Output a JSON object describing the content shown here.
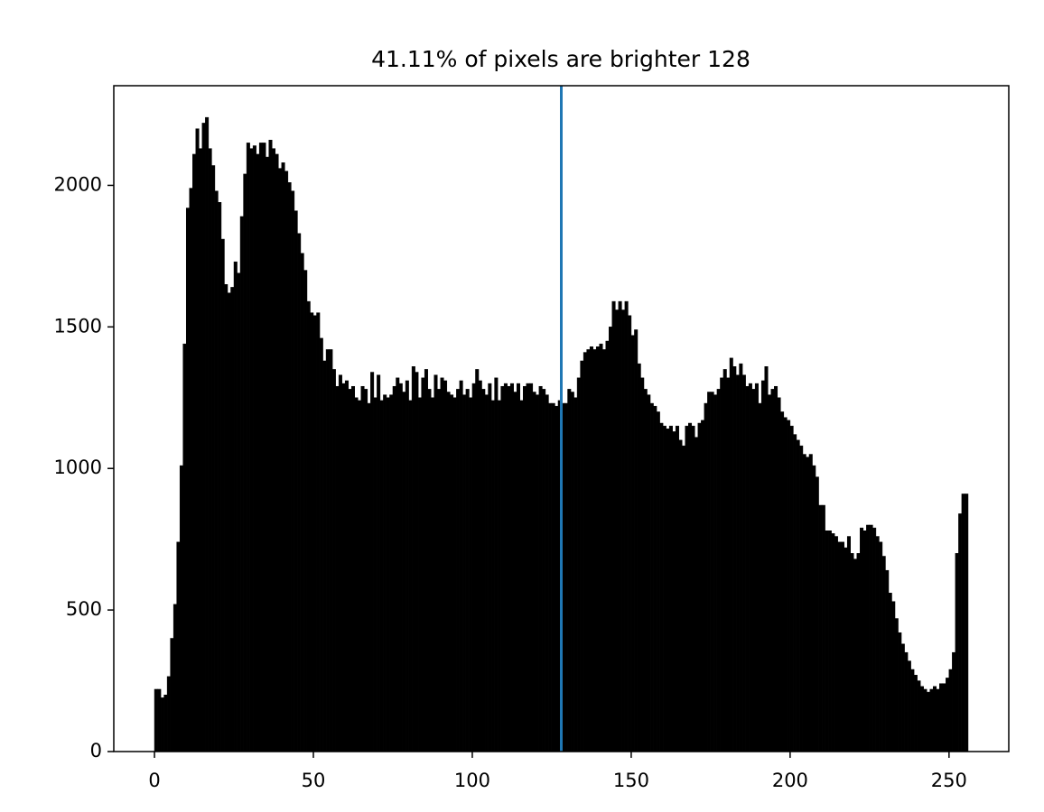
{
  "chart_data": {
    "type": "histogram",
    "title": "41.11% of pixels are brighter 128",
    "bins": [
      0,
      1,
      2,
      3,
      4,
      5,
      6,
      7,
      8,
      9,
      10,
      11,
      12,
      13,
      14,
      15,
      16,
      17,
      18,
      19,
      20,
      21,
      22,
      23,
      24,
      25,
      26,
      27,
      28,
      29,
      30,
      31,
      32,
      33,
      34,
      35,
      36,
      37,
      38,
      39,
      40,
      41,
      42,
      43,
      44,
      45,
      46,
      47,
      48,
      49,
      50,
      51,
      52,
      53,
      54,
      55,
      56,
      57,
      58,
      59,
      60,
      61,
      62,
      63,
      64,
      65,
      66,
      67,
      68,
      69,
      70,
      71,
      72,
      73,
      74,
      75,
      76,
      77,
      78,
      79,
      80,
      81,
      82,
      83,
      84,
      85,
      86,
      87,
      88,
      89,
      90,
      91,
      92,
      93,
      94,
      95,
      96,
      97,
      98,
      99,
      100,
      101,
      102,
      103,
      104,
      105,
      106,
      107,
      108,
      109,
      110,
      111,
      112,
      113,
      114,
      115,
      116,
      117,
      118,
      119,
      120,
      121,
      122,
      123,
      124,
      125,
      126,
      127,
      128,
      129,
      130,
      131,
      132,
      133,
      134,
      135,
      136,
      137,
      138,
      139,
      140,
      141,
      142,
      143,
      144,
      145,
      146,
      147,
      148,
      149,
      150,
      151,
      152,
      153,
      154,
      155,
      156,
      157,
      158,
      159,
      160,
      161,
      162,
      163,
      164,
      165,
      166,
      167,
      168,
      169,
      170,
      171,
      172,
      173,
      174,
      175,
      176,
      177,
      178,
      179,
      180,
      181,
      182,
      183,
      184,
      185,
      186,
      187,
      188,
      189,
      190,
      191,
      192,
      193,
      194,
      195,
      196,
      197,
      198,
      199,
      200,
      201,
      202,
      203,
      204,
      205,
      206,
      207,
      208,
      209,
      210,
      211,
      212,
      213,
      214,
      215,
      216,
      217,
      218,
      219,
      220,
      221,
      222,
      223,
      224,
      225,
      226,
      227,
      228,
      229,
      230,
      231,
      232,
      233,
      234,
      235,
      236,
      237,
      238,
      239,
      240,
      241,
      242,
      243,
      244,
      245,
      246,
      247,
      248,
      249,
      250,
      251,
      252,
      253,
      254,
      255,
      256
    ],
    "values": [
      220,
      220,
      190,
      200,
      265,
      400,
      520,
      740,
      1010,
      1440,
      1920,
      1990,
      2110,
      2200,
      2130,
      2220,
      2240,
      2130,
      2070,
      1980,
      1940,
      1810,
      1650,
      1620,
      1640,
      1730,
      1690,
      1890,
      2040,
      2150,
      2130,
      2140,
      2110,
      2150,
      2150,
      2100,
      2160,
      2130,
      2110,
      2060,
      2080,
      2050,
      2010,
      1980,
      1910,
      1830,
      1760,
      1700,
      1590,
      1550,
      1540,
      1550,
      1460,
      1380,
      1420,
      1420,
      1350,
      1290,
      1330,
      1300,
      1310,
      1280,
      1290,
      1250,
      1240,
      1290,
      1280,
      1230,
      1340,
      1250,
      1330,
      1240,
      1260,
      1250,
      1260,
      1290,
      1320,
      1300,
      1270,
      1310,
      1240,
      1360,
      1340,
      1250,
      1320,
      1350,
      1280,
      1250,
      1330,
      1280,
      1320,
      1310,
      1270,
      1260,
      1250,
      1280,
      1310,
      1260,
      1280,
      1250,
      1300,
      1350,
      1310,
      1280,
      1260,
      1300,
      1240,
      1320,
      1240,
      1290,
      1300,
      1290,
      1300,
      1270,
      1300,
      1240,
      1290,
      1300,
      1300,
      1270,
      1260,
      1290,
      1280,
      1260,
      1230,
      1230,
      1220,
      1240,
      1230,
      1230,
      1280,
      1270,
      1250,
      1320,
      1380,
      1410,
      1420,
      1430,
      1420,
      1430,
      1440,
      1420,
      1450,
      1500,
      1590,
      1560,
      1590,
      1560,
      1590,
      1540,
      1470,
      1490,
      1370,
      1320,
      1280,
      1260,
      1230,
      1220,
      1200,
      1160,
      1150,
      1140,
      1150,
      1130,
      1150,
      1100,
      1080,
      1150,
      1160,
      1150,
      1110,
      1160,
      1170,
      1230,
      1270,
      1270,
      1260,
      1280,
      1320,
      1350,
      1320,
      1390,
      1360,
      1330,
      1370,
      1330,
      1290,
      1300,
      1280,
      1300,
      1230,
      1310,
      1360,
      1260,
      1280,
      1290,
      1250,
      1200,
      1180,
      1170,
      1150,
      1120,
      1100,
      1080,
      1050,
      1040,
      1050,
      1010,
      970,
      870,
      870,
      780,
      780,
      770,
      760,
      740,
      740,
      720,
      760,
      700,
      680,
      700,
      790,
      780,
      800,
      800,
      790,
      760,
      740,
      690,
      640,
      560,
      530,
      470,
      420,
      380,
      350,
      320,
      290,
      270,
      250,
      230,
      220,
      210,
      220,
      230,
      220,
      240,
      240,
      260,
      290,
      350,
      700,
      840,
      910,
      910
    ],
    "color": "#000000",
    "vline": {
      "x": 128,
      "color": "#1f77b4"
    },
    "xlim": [
      -12.8,
      268.8
    ],
    "xticks": [
      0,
      50,
      100,
      150,
      200,
      250
    ],
    "ylim": [
      0,
      2352
    ],
    "yticks": [
      0,
      500,
      1000,
      1500,
      2000
    ]
  }
}
